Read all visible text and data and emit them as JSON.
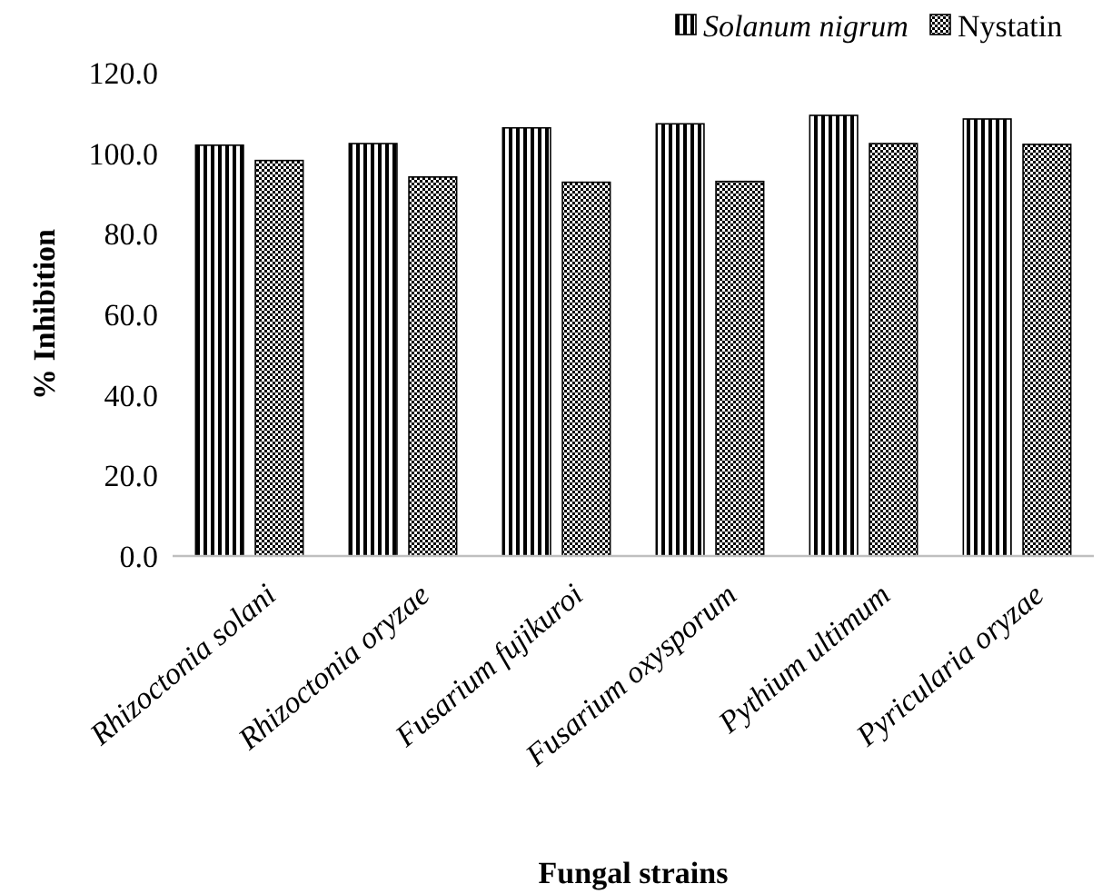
{
  "chart_data": {
    "type": "bar",
    "xlabel": "Fungal strains",
    "ylabel": "% Inhibition",
    "categories": [
      "Rhizoctonia solani",
      "Rhizoctonia oryzae",
      "Fusarium fujikuroi",
      "Fusarium oxysporum",
      "Pythium ultimum",
      "Pyricularia oryzae"
    ],
    "series": [
      {
        "name": "Solanum nigrum",
        "color": "#000000",
        "values": [
          102.0,
          102.4,
          106.3,
          107.3,
          109.4,
          108.5
        ]
      },
      {
        "name": "Nystatin",
        "color": "#000000",
        "values": [
          98.2,
          94.1,
          92.8,
          93.0,
          102.4,
          102.2
        ]
      }
    ],
    "ylim": [
      0,
      120
    ],
    "yticks": [
      {
        "value": 0,
        "label": "0.0"
      },
      {
        "value": 20,
        "label": "20.0"
      },
      {
        "value": 40,
        "label": "40.0"
      },
      {
        "value": 60,
        "label": "60.0"
      },
      {
        "value": 80,
        "label": "80.0"
      },
      {
        "value": 100,
        "label": "100.0"
      },
      {
        "value": 120,
        "label": "120.0"
      }
    ],
    "legend": "top right"
  }
}
